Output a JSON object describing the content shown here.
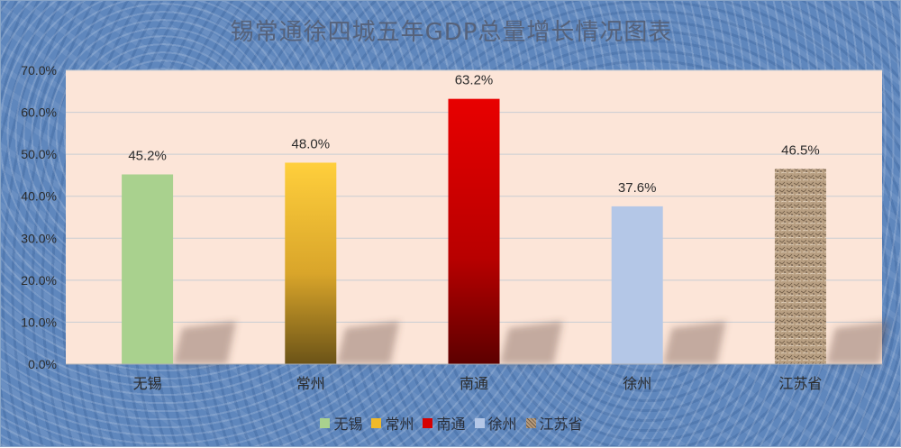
{
  "page": {
    "title": "锡常通徐四城五年GDP总量增长情况图表"
  },
  "chart_data": {
    "type": "bar",
    "title": "锡常通徐四城五年GDP总量增长情况图表",
    "categories": [
      "无锡",
      "常州",
      "南通",
      "徐州",
      "江苏省"
    ],
    "values": [
      45.2,
      48.0,
      63.2,
      37.6,
      46.5
    ],
    "data_labels": [
      "45.2%",
      "48.0%",
      "63.2%",
      "37.6%",
      "46.5%"
    ],
    "ylim": [
      0,
      70
    ],
    "yticks": [
      "0.0%",
      "10.0%",
      "20.0%",
      "30.0%",
      "40.0%",
      "50.0%",
      "60.0%",
      "70.0%"
    ],
    "grid": true,
    "legend_position": "bottom",
    "colors": {
      "无锡": "#a9d18e",
      "常州": "#ffcd3a",
      "南通": "#e00000",
      "徐州": "#b4c7e7",
      "江苏省": "#b59a7c",
      "plot_background": "#fce5d8"
    }
  },
  "legend": [
    {
      "label": "无锡",
      "color": "#a9d18e"
    },
    {
      "label": "常州",
      "color": "#f0b92a"
    },
    {
      "label": "南通",
      "color": "#d60000"
    },
    {
      "label": "徐州",
      "color": "#b4c7e7"
    },
    {
      "label": "江苏省",
      "color": "#b59a7c"
    }
  ]
}
